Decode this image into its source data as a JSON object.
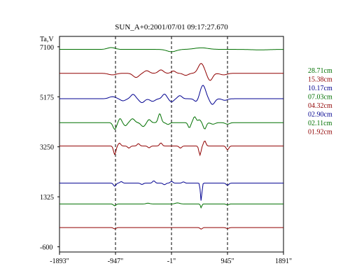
{
  "chart_data": {
    "type": "line",
    "title": "SUN_A+0:2001/07/01 09:17:27.670",
    "ylabel": "Ta,V",
    "xlabel": "",
    "x_ticks": [
      "-1893\"",
      "-947\"",
      "-1\"",
      "945\"",
      "1891\""
    ],
    "x_tick_values": [
      -1893,
      -947,
      -1,
      945,
      1891
    ],
    "y_ticks": [
      "7100",
      "5175",
      "3250",
      "1325",
      "-600"
    ],
    "y_tick_values": [
      7100,
      5175,
      3250,
      1325,
      -600
    ],
    "xlim": [
      -1893,
      1891
    ],
    "ylim": [
      -800,
      7500
    ],
    "vertical_dashed_lines": [
      -947,
      -1,
      945
    ],
    "grid": false,
    "legend_position": "right",
    "series": [
      {
        "name": "28.71cm",
        "color": "#007000",
        "baseline": 7000,
        "features": [
          {
            "x": -1020,
            "a": 70,
            "w": 90
          },
          {
            "x": -1,
            "a": -90,
            "w": 110
          },
          {
            "x": 500,
            "a": 60,
            "w": 160
          },
          {
            "x": 1500,
            "a": -20,
            "w": 200
          }
        ]
      },
      {
        "name": "15.38cm",
        "color": "#900000",
        "baseline": 6080,
        "features": [
          {
            "x": -1000,
            "a": -60,
            "w": 90
          },
          {
            "x": -600,
            "a": -160,
            "w": 70
          },
          {
            "x": -420,
            "a": 100,
            "w": 60
          },
          {
            "x": -180,
            "a": 130,
            "w": 60
          },
          {
            "x": 30,
            "a": 90,
            "w": 50
          },
          {
            "x": 240,
            "a": -80,
            "w": 60
          },
          {
            "x": 500,
            "a": 380,
            "w": 70
          },
          {
            "x": 650,
            "a": -280,
            "w": 60
          },
          {
            "x": 880,
            "a": -60,
            "w": 80
          }
        ]
      },
      {
        "name": "10.17cm",
        "color": "#000090",
        "baseline": 5100,
        "features": [
          {
            "x": -1000,
            "a": 80,
            "w": 80
          },
          {
            "x": -820,
            "a": -80,
            "w": 60
          },
          {
            "x": -650,
            "a": 170,
            "w": 55
          },
          {
            "x": -500,
            "a": -150,
            "w": 60
          },
          {
            "x": -320,
            "a": -100,
            "w": 60
          },
          {
            "x": -120,
            "a": 180,
            "w": 50
          },
          {
            "x": 0,
            "a": -120,
            "w": 50
          },
          {
            "x": 140,
            "a": 120,
            "w": 50
          },
          {
            "x": 420,
            "a": -120,
            "w": 50
          },
          {
            "x": 530,
            "a": 520,
            "w": 65
          },
          {
            "x": 690,
            "a": -220,
            "w": 55
          },
          {
            "x": 900,
            "a": -60,
            "w": 60
          }
        ]
      },
      {
        "name": "07.03cm",
        "color": "#007000",
        "baseline": 4180,
        "features": [
          {
            "x": -960,
            "a": -260,
            "w": 40
          },
          {
            "x": -870,
            "a": 160,
            "w": 35
          },
          {
            "x": -780,
            "a": -120,
            "w": 40
          },
          {
            "x": -660,
            "a": 150,
            "w": 50
          },
          {
            "x": -480,
            "a": -150,
            "w": 50
          },
          {
            "x": -380,
            "a": 120,
            "w": 40
          },
          {
            "x": -200,
            "a": 350,
            "w": 35
          },
          {
            "x": -60,
            "a": -70,
            "w": 40
          },
          {
            "x": 300,
            "a": -200,
            "w": 30
          },
          {
            "x": 390,
            "a": 230,
            "w": 35
          },
          {
            "x": 470,
            "a": 110,
            "w": 35
          },
          {
            "x": 560,
            "a": -250,
            "w": 35
          },
          {
            "x": 700,
            "a": -60,
            "w": 50
          },
          {
            "x": 945,
            "a": -60,
            "w": 50
          }
        ]
      },
      {
        "name": "04.32cm",
        "color": "#900000",
        "baseline": 3280,
        "features": [
          {
            "x": -960,
            "a": -330,
            "w": 28
          },
          {
            "x": -880,
            "a": 110,
            "w": 30
          },
          {
            "x": -720,
            "a": -80,
            "w": 30
          },
          {
            "x": -560,
            "a": 90,
            "w": 30
          },
          {
            "x": -380,
            "a": -70,
            "w": 30
          },
          {
            "x": -180,
            "a": 120,
            "w": 30
          },
          {
            "x": 150,
            "a": -80,
            "w": 30
          },
          {
            "x": 480,
            "a": -350,
            "w": 25
          },
          {
            "x": 560,
            "a": 200,
            "w": 28
          },
          {
            "x": 945,
            "a": -150,
            "w": 30
          }
        ]
      },
      {
        "name": "02.90cm",
        "color": "#000090",
        "baseline": 1850,
        "features": [
          {
            "x": -960,
            "a": -120,
            "w": 28
          },
          {
            "x": -850,
            "a": 60,
            "w": 30
          },
          {
            "x": -500,
            "a": -50,
            "w": 30
          },
          {
            "x": -300,
            "a": 90,
            "w": 30
          },
          {
            "x": -120,
            "a": -60,
            "w": 30
          },
          {
            "x": 0,
            "a": 70,
            "w": 30
          },
          {
            "x": 200,
            "a": 50,
            "w": 30
          },
          {
            "x": 500,
            "a": -680,
            "w": 18
          },
          {
            "x": 945,
            "a": -80,
            "w": 30
          }
        ]
      },
      {
        "name": "02.11cm",
        "color": "#007000",
        "baseline": 1050,
        "features": [
          {
            "x": -960,
            "a": -70,
            "w": 30
          },
          {
            "x": -400,
            "a": 30,
            "w": 40
          },
          {
            "x": 100,
            "a": 40,
            "w": 50
          },
          {
            "x": 500,
            "a": -150,
            "w": 16
          },
          {
            "x": 945,
            "a": -40,
            "w": 30
          }
        ]
      },
      {
        "name": "01.92cm",
        "color": "#900000",
        "baseline": 140,
        "features": [
          {
            "x": -960,
            "a": -50,
            "w": 30
          },
          {
            "x": 500,
            "a": -60,
            "w": 25
          },
          {
            "x": 945,
            "a": -40,
            "w": 30
          }
        ]
      }
    ]
  }
}
